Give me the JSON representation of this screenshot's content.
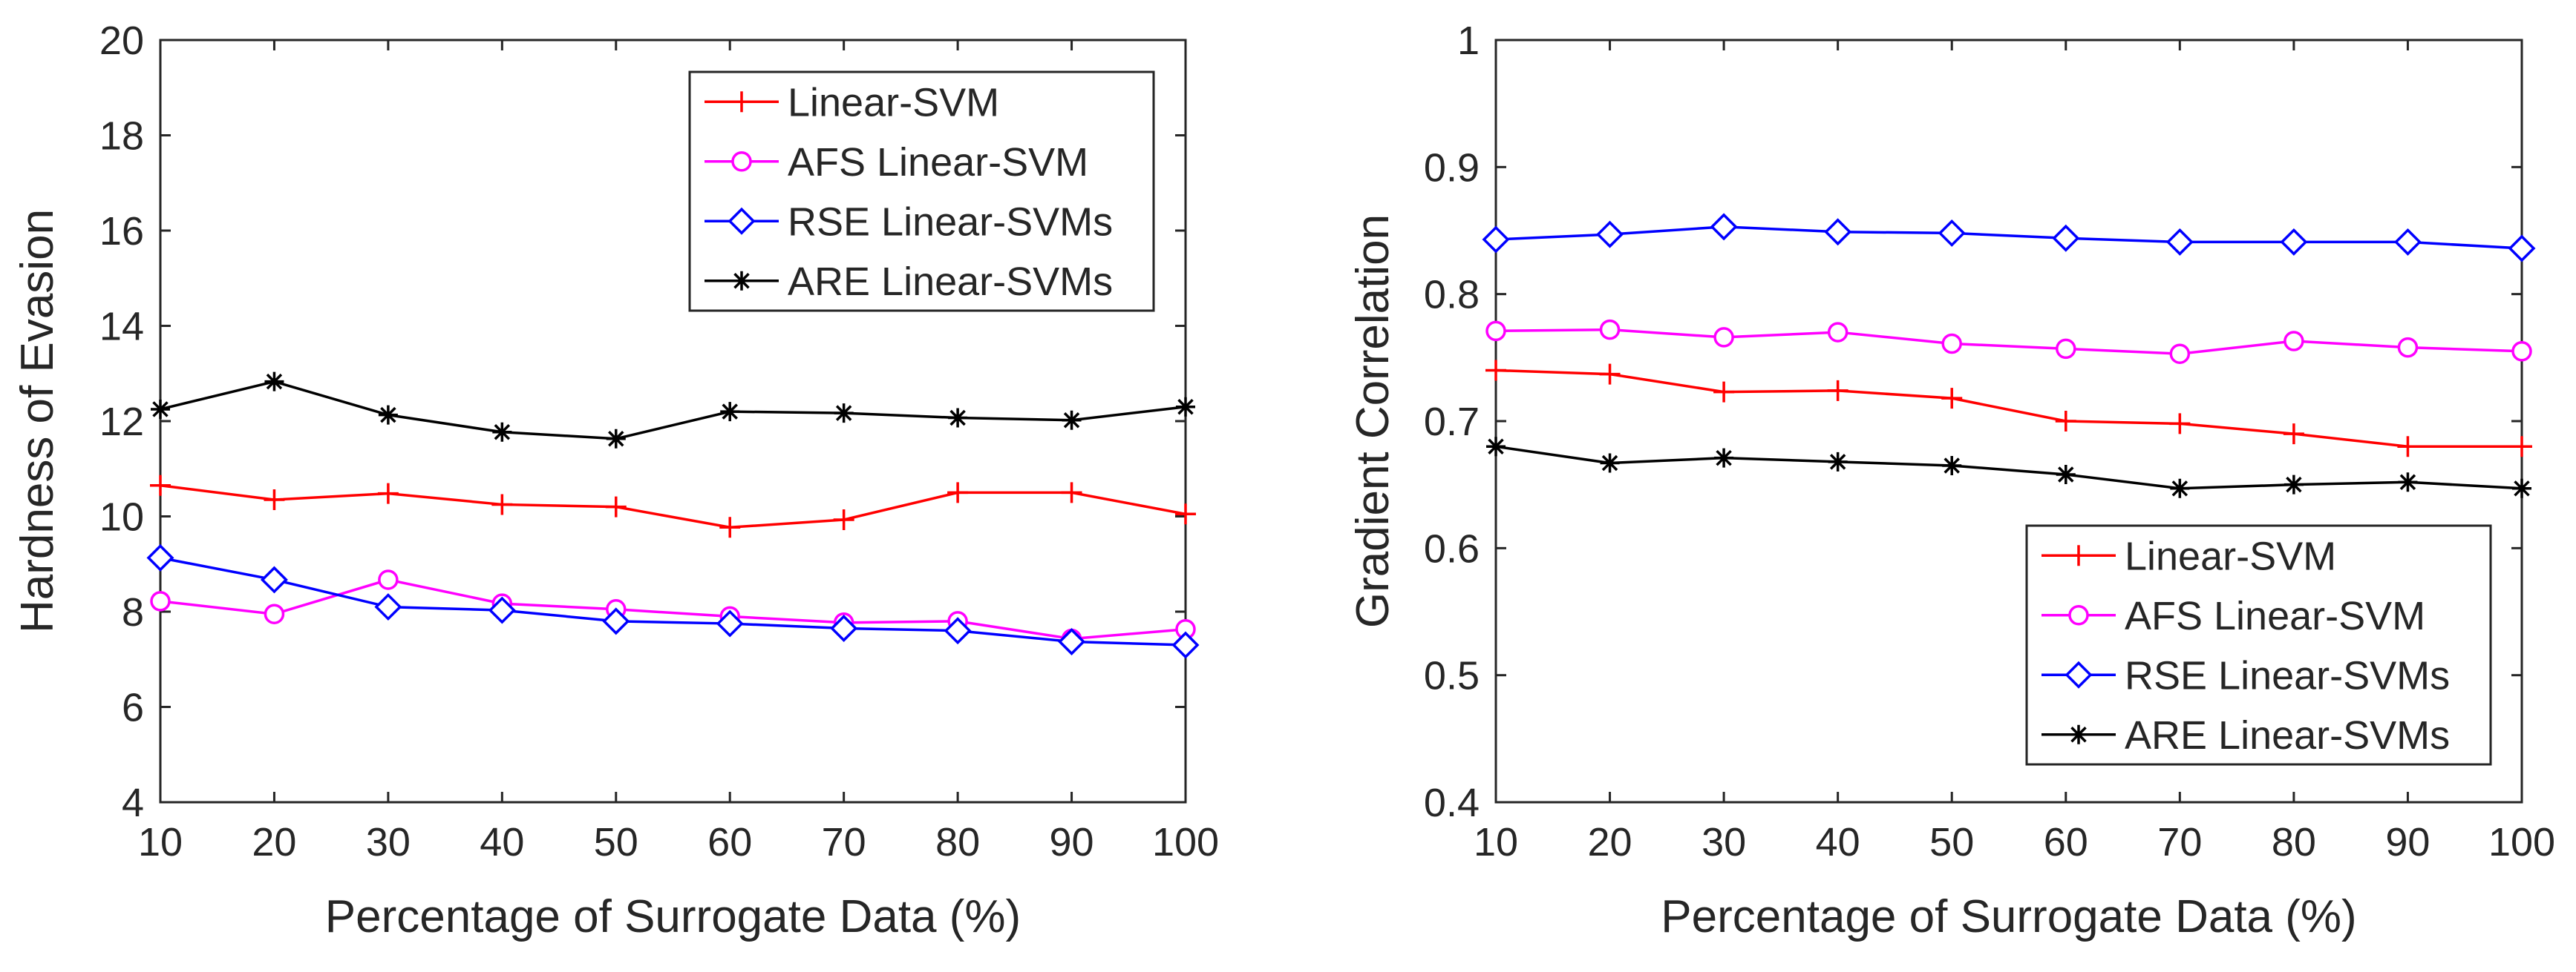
{
  "chart_data": [
    {
      "type": "line",
      "title": "",
      "xlabel": "Percentage of Surrogate Data (%)",
      "ylabel": "Hardness of Evasion",
      "x": [
        10,
        20,
        30,
        40,
        50,
        60,
        70,
        80,
        90,
        100
      ],
      "xlim": [
        10,
        100
      ],
      "ylim": [
        4,
        20
      ],
      "xticks": [
        "10",
        "20",
        "30",
        "40",
        "50",
        "60",
        "70",
        "80",
        "90",
        "100"
      ],
      "yticks": [
        "4",
        "6",
        "8",
        "10",
        "12",
        "14",
        "16",
        "18",
        "20"
      ],
      "grid": false,
      "legend_position": "top-right",
      "series": [
        {
          "name": "Linear-SVM",
          "color": "#ff0000",
          "marker": "plus",
          "values": [
            10.65,
            10.35,
            10.48,
            10.25,
            10.2,
            9.77,
            9.93,
            10.5,
            10.5,
            10.05
          ]
        },
        {
          "name": "AFS Linear-SVM",
          "color": "#ff00ff",
          "marker": "circle",
          "values": [
            8.22,
            7.95,
            8.67,
            8.17,
            8.05,
            7.9,
            7.77,
            7.8,
            7.43,
            7.63
          ]
        },
        {
          "name": "RSE Linear-SVMs",
          "color": "#0000ff",
          "marker": "diamond",
          "values": [
            9.13,
            8.67,
            8.1,
            8.03,
            7.8,
            7.75,
            7.65,
            7.6,
            7.37,
            7.3
          ]
        },
        {
          "name": "ARE Linear-SVMs",
          "color": "#000000",
          "marker": "asterisk",
          "values": [
            12.25,
            12.83,
            12.13,
            11.77,
            11.63,
            12.2,
            12.17,
            12.07,
            12.02,
            12.3
          ]
        }
      ]
    },
    {
      "type": "line",
      "title": "",
      "xlabel": "Percentage of Surrogate Data (%)",
      "ylabel": "Gradient Correlation",
      "x": [
        10,
        20,
        30,
        40,
        50,
        60,
        70,
        80,
        90,
        100
      ],
      "xlim": [
        10,
        100
      ],
      "ylim": [
        0.4,
        1
      ],
      "xticks": [
        "10",
        "20",
        "30",
        "40",
        "50",
        "60",
        "70",
        "80",
        "90",
        "100"
      ],
      "yticks": [
        "0.4",
        "0.5",
        "0.6",
        "0.7",
        "0.8",
        "0.9",
        "1"
      ],
      "grid": false,
      "legend_position": "bottom-right",
      "series": [
        {
          "name": "Linear-SVM",
          "color": "#ff0000",
          "marker": "plus",
          "values": [
            0.74,
            0.737,
            0.723,
            0.724,
            0.718,
            0.7,
            0.698,
            0.69,
            0.68,
            0.68
          ]
        },
        {
          "name": "AFS Linear-SVM",
          "color": "#ff00ff",
          "marker": "circle",
          "values": [
            0.771,
            0.772,
            0.766,
            0.77,
            0.761,
            0.757,
            0.753,
            0.763,
            0.758,
            0.755
          ]
        },
        {
          "name": "RSE Linear-SVMs",
          "color": "#0000ff",
          "marker": "diamond",
          "values": [
            0.843,
            0.847,
            0.853,
            0.849,
            0.848,
            0.844,
            0.841,
            0.841,
            0.841,
            0.836
          ]
        },
        {
          "name": "ARE Linear-SVMs",
          "color": "#000000",
          "marker": "asterisk",
          "values": [
            0.68,
            0.667,
            0.671,
            0.668,
            0.665,
            0.658,
            0.647,
            0.65,
            0.652,
            0.647
          ]
        }
      ]
    }
  ]
}
